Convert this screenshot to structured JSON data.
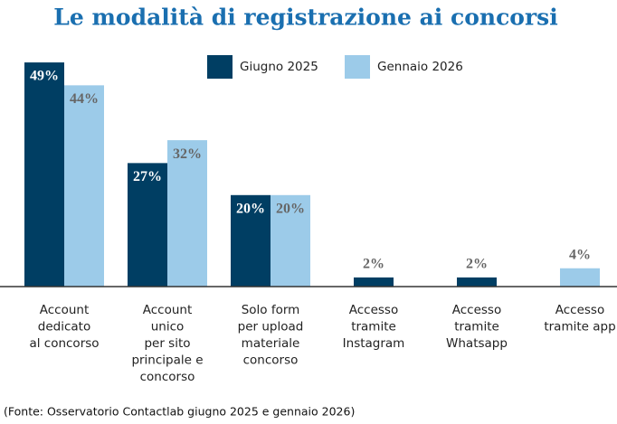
{
  "chart_data": {
    "type": "bar",
    "title": "Le modalità di registrazione ai concorsi",
    "categories": [
      "Account\ndedicato\nal concorso",
      "Account\nunico\nper sito\nprincipale e\nconcorso",
      "Solo form\nper upload\nmateriale\nconcorso",
      "Accesso\ntramite\nInstagram",
      "Accesso\ntramite\nWhatsapp",
      "Accesso\ntramite app"
    ],
    "series": [
      {
        "name": "Giugno 2025",
        "color": "#003e63",
        "values": [
          49,
          27,
          20,
          2,
          2,
          null
        ],
        "value_labels": [
          "49%",
          "27%",
          "20%",
          "2%",
          "2%",
          null
        ]
      },
      {
        "name": "Gennaio 2026",
        "color": "#9ccbe9",
        "values": [
          44,
          32,
          20,
          null,
          null,
          4
        ],
        "value_labels": [
          "44%",
          "32%",
          "20%",
          null,
          null,
          "4%"
        ]
      }
    ],
    "ylim": [
      0,
      50
    ],
    "source": "(Fonte: Osservatorio Contactlab giugno 2025 e gennaio 2026)"
  }
}
